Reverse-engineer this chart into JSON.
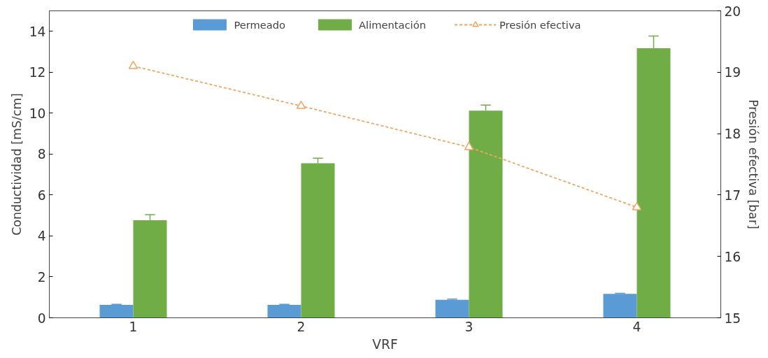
{
  "chart_data": {
    "type": "bar",
    "xlabel": "VRF",
    "ylabel": "Conductividad [mS/cm]",
    "y2label": "Presión efectiva [bar]",
    "categories": [
      "1",
      "2",
      "3",
      "4"
    ],
    "series": [
      {
        "name": "Permeado",
        "color": "#5b9bd5",
        "values": [
          0.63,
          0.63,
          0.88,
          1.17
        ],
        "errors": [
          [
            0.63,
            0.66
          ],
          [
            0.63,
            0.66
          ],
          [
            0.88,
            0.91
          ],
          [
            1.17,
            1.2
          ]
        ]
      },
      {
        "name": "Alimentación",
        "color": "#70ad47",
        "values": [
          4.77,
          7.55,
          10.12,
          13.17
        ],
        "errors": [
          [
            4.77,
            5.04
          ],
          [
            7.55,
            7.8
          ],
          [
            10.12,
            10.4
          ],
          [
            13.17,
            13.77
          ]
        ]
      },
      {
        "name": "Presión efectiva",
        "type": "line",
        "axis": "y2",
        "color": "#f4a460",
        "marker": "triangle",
        "line_style": "dashed",
        "values": [
          19.1,
          18.45,
          17.78,
          16.8
        ]
      }
    ],
    "ylim": [
      0,
      15
    ],
    "yticks": [
      0,
      2,
      4,
      6,
      8,
      10,
      12,
      14
    ],
    "y2lim": [
      15,
      20
    ],
    "y2ticks": [
      15,
      16,
      17,
      18,
      19,
      20
    ],
    "grid": false,
    "legend": "top"
  }
}
